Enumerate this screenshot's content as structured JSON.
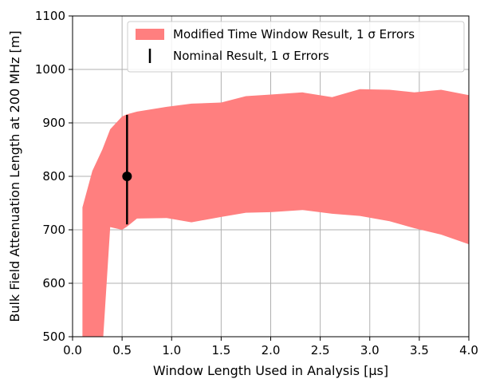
{
  "chart_data": {
    "type": "area",
    "xlabel": "Window Length Used in Analysis [μs]",
    "ylabel": "Bulk Field Attenuation Length at 200 MHz [m]",
    "xlim": [
      0.0,
      4.0
    ],
    "ylim": [
      500,
      1100
    ],
    "xticks": [
      "0.0",
      "0.5",
      "1.0",
      "1.5",
      "2.0",
      "2.5",
      "3.0",
      "3.5",
      "4.0"
    ],
    "yticks": [
      "500",
      "600",
      "700",
      "800",
      "900",
      "1000",
      "1100"
    ],
    "grid": true,
    "legend_position": "top-right",
    "band": {
      "name": "Modified Time Window Result, 1 σ Errors",
      "color": "#ff7f7f",
      "x": [
        0.1,
        0.2,
        0.3,
        0.38,
        0.5,
        0.55,
        0.65,
        0.95,
        1.2,
        1.5,
        1.75,
        2.0,
        2.32,
        2.62,
        2.9,
        3.2,
        3.45,
        3.72,
        4.0
      ],
      "upper": [
        742,
        810,
        850,
        888,
        912,
        916,
        921,
        930,
        936,
        938,
        950,
        953,
        957,
        948,
        963,
        962,
        957,
        962,
        952
      ],
      "lower": [
        475,
        468,
        472,
        705,
        700,
        706,
        721,
        722,
        714,
        724,
        732,
        733,
        737,
        730,
        726,
        716,
        703,
        691,
        673
      ]
    },
    "nominal": {
      "name": "Nominal Result, 1 σ Errors",
      "x": 0.55,
      "y": 800,
      "err_low": 90,
      "err_high": 115,
      "color": "#000000"
    }
  }
}
